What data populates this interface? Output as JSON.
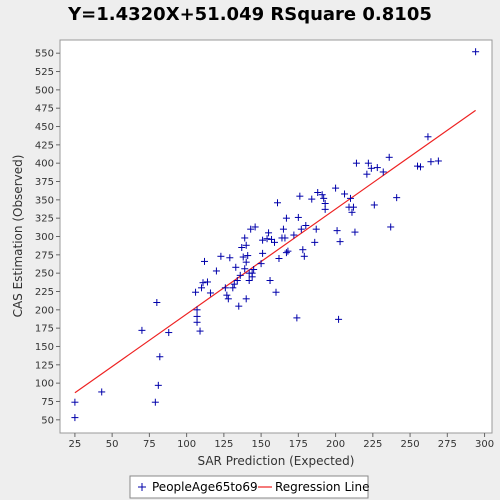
{
  "chart_data": {
    "type": "scatter",
    "title": "Y=1.4320X+51.049    RSquare 0.8105",
    "xlabel": "SAR Prediction (Expected)",
    "ylabel": "CAS Estimation (Observed)",
    "xlim": [
      15,
      305
    ],
    "ylim": [
      32,
      568
    ],
    "xticks": [
      25,
      50,
      75,
      100,
      125,
      150,
      175,
      200,
      225,
      250,
      275,
      300
    ],
    "yticks": [
      50,
      75,
      100,
      125,
      150,
      175,
      200,
      225,
      250,
      275,
      300,
      325,
      350,
      375,
      400,
      425,
      450,
      475,
      500,
      525,
      550
    ],
    "grid": false,
    "legend_position": "bottom",
    "colors": {
      "points": "#0000aa",
      "regression": "#ee2222",
      "background": "#eeeeee",
      "plot_background": "#ffffff"
    },
    "series": [
      {
        "name": "PeopleAge65to69",
        "type": "scatter",
        "marker": "plus",
        "points": [
          [
            25,
            74
          ],
          [
            25,
            53
          ],
          [
            43,
            88
          ],
          [
            70,
            172
          ],
          [
            79,
            74
          ],
          [
            80,
            210
          ],
          [
            81,
            97
          ],
          [
            82,
            136
          ],
          [
            88,
            169
          ],
          [
            106,
            224
          ],
          [
            107,
            200
          ],
          [
            107,
            191
          ],
          [
            107,
            183
          ],
          [
            109,
            171
          ],
          [
            110,
            230
          ],
          [
            111,
            237
          ],
          [
            112,
            266
          ],
          [
            114,
            238
          ],
          [
            116,
            223
          ],
          [
            120,
            253
          ],
          [
            123,
            273
          ],
          [
            126,
            230
          ],
          [
            127,
            220
          ],
          [
            128,
            215
          ],
          [
            129,
            271
          ],
          [
            131,
            230
          ],
          [
            132,
            235
          ],
          [
            133,
            258
          ],
          [
            134,
            240
          ],
          [
            135,
            205
          ],
          [
            136,
            247
          ],
          [
            137,
            285
          ],
          [
            138,
            272
          ],
          [
            139,
            256
          ],
          [
            139,
            298
          ],
          [
            140,
            288
          ],
          [
            140,
            265
          ],
          [
            140,
            215
          ],
          [
            141,
            274
          ],
          [
            142,
            250
          ],
          [
            142,
            240
          ],
          [
            143,
            310
          ],
          [
            144,
            245
          ],
          [
            144,
            250
          ],
          [
            145,
            255
          ],
          [
            146,
            313
          ],
          [
            150,
            263
          ],
          [
            151,
            277
          ],
          [
            151,
            295
          ],
          [
            154,
            297
          ],
          [
            155,
            305
          ],
          [
            156,
            240
          ],
          [
            157,
            296
          ],
          [
            159,
            292
          ],
          [
            160,
            224
          ],
          [
            161,
            346
          ],
          [
            162,
            270
          ],
          [
            164,
            298
          ],
          [
            165,
            310
          ],
          [
            166,
            298
          ],
          [
            167,
            325
          ],
          [
            167,
            278
          ],
          [
            168,
            280
          ],
          [
            172,
            302
          ],
          [
            174,
            189
          ],
          [
            175,
            326
          ],
          [
            176,
            355
          ],
          [
            177,
            310
          ],
          [
            178,
            282
          ],
          [
            179,
            273
          ],
          [
            180,
            315
          ],
          [
            184,
            351
          ],
          [
            186,
            292
          ],
          [
            187,
            310
          ],
          [
            188,
            360
          ],
          [
            191,
            357
          ],
          [
            192,
            352
          ],
          [
            193,
            345
          ],
          [
            193,
            337
          ],
          [
            200,
            366
          ],
          [
            201,
            308
          ],
          [
            202,
            187
          ],
          [
            203,
            293
          ],
          [
            206,
            358
          ],
          [
            209,
            340
          ],
          [
            210,
            352
          ],
          [
            211,
            333
          ],
          [
            212,
            340
          ],
          [
            213,
            306
          ],
          [
            214,
            400
          ],
          [
            221,
            385
          ],
          [
            222,
            400
          ],
          [
            224,
            393
          ],
          [
            226,
            343
          ],
          [
            228,
            394
          ],
          [
            232,
            388
          ],
          [
            236,
            408
          ],
          [
            237,
            313
          ],
          [
            241,
            353
          ],
          [
            255,
            396
          ],
          [
            257,
            395
          ],
          [
            262,
            436
          ],
          [
            264,
            402
          ],
          [
            269,
            403
          ],
          [
            294,
            552
          ]
        ]
      },
      {
        "name": "Regression Line",
        "type": "line",
        "points": [
          [
            25,
            86.849
          ],
          [
            294,
            472.057
          ]
        ]
      }
    ]
  }
}
